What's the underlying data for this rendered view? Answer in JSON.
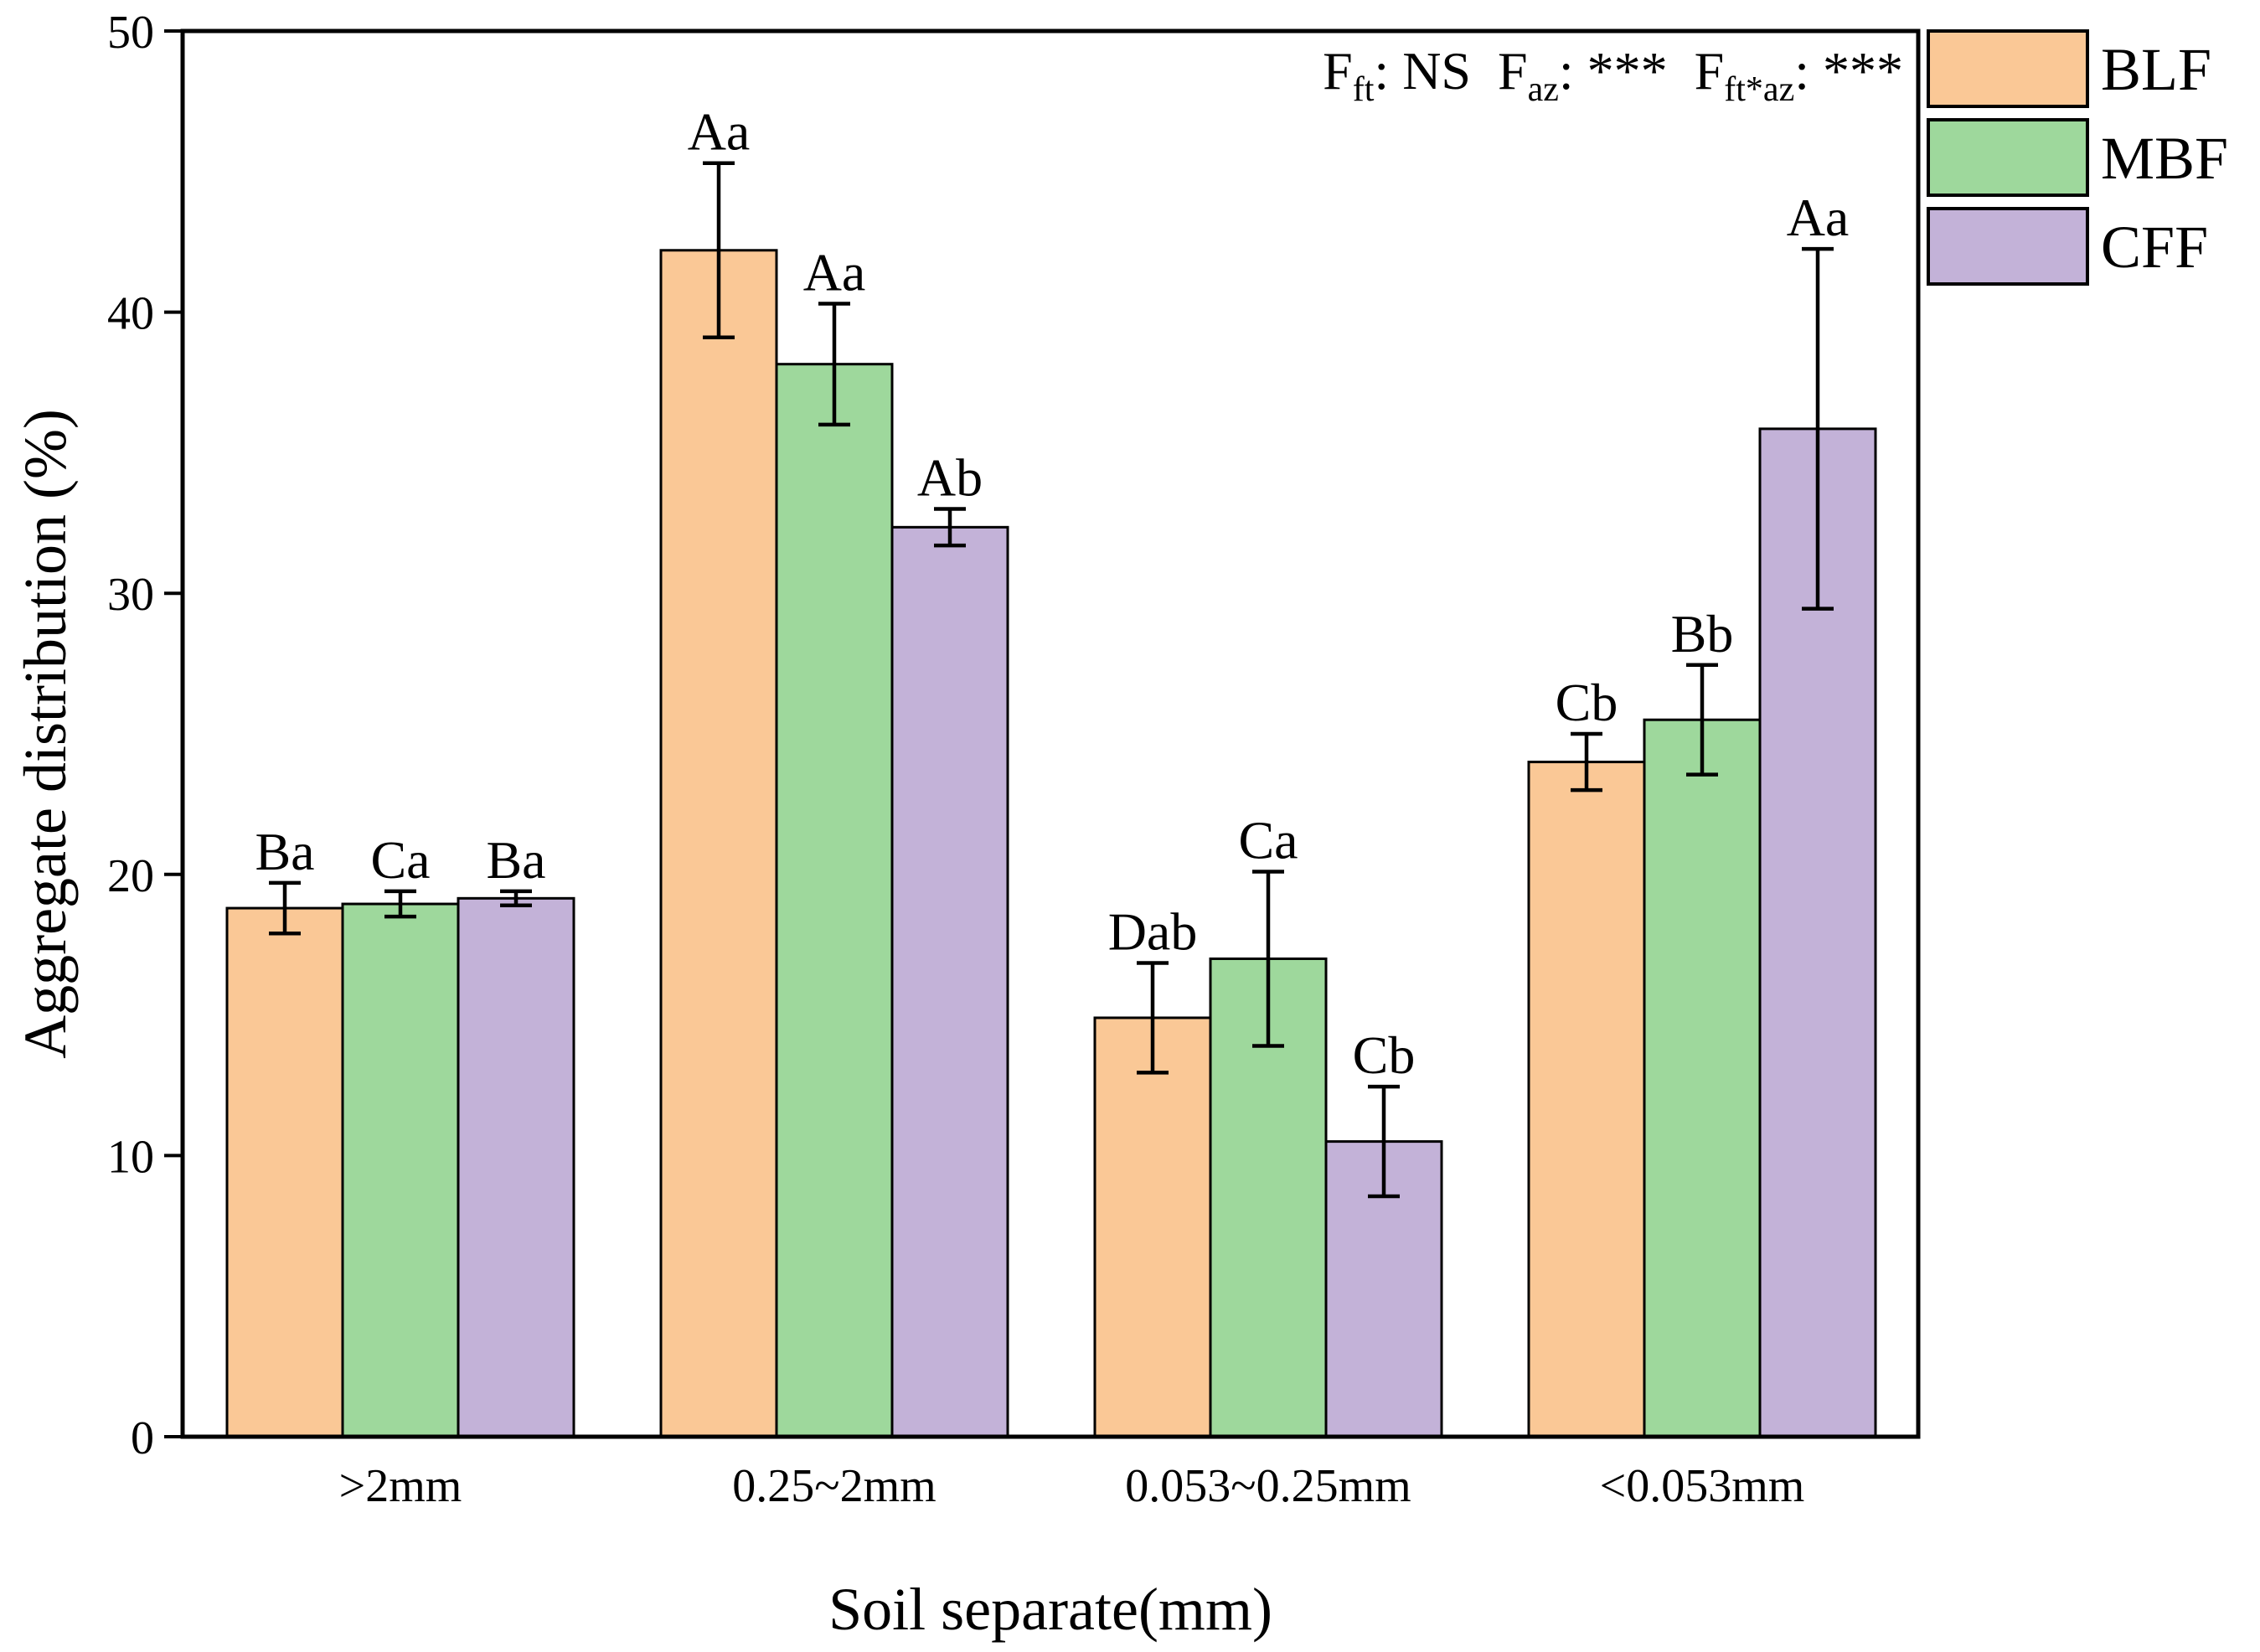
{
  "chart_data": {
    "type": "bar",
    "title": "",
    "xlabel": "Soil separate(mm)",
    "ylabel": "Aggregate distribution (%)",
    "ylim": [
      0,
      50
    ],
    "yticks": [
      0,
      10,
      20,
      30,
      40,
      50
    ],
    "ytick_labels": [
      "0",
      "10",
      "20",
      "30",
      "40",
      "50"
    ],
    "categories": [
      ">2mm",
      "0.25~2mm",
      "0.053~0.25mm",
      "<0.053mm"
    ],
    "series": [
      {
        "name": "BLF",
        "color": "#FAC896",
        "values": [
          18.8,
          42.2,
          14.9,
          24.0
        ],
        "errors": [
          0.9,
          3.1,
          1.95,
          1.0
        ],
        "letters": [
          "Ba",
          "Aa",
          "Dab",
          "Cb"
        ]
      },
      {
        "name": "MBF",
        "color": "#9ED89C",
        "values": [
          18.95,
          38.15,
          17.0,
          25.5
        ],
        "errors": [
          0.45,
          2.15,
          3.1,
          1.95
        ],
        "letters": [
          "Ca",
          "Aa",
          "Ca",
          "Bb"
        ]
      },
      {
        "name": "CFF",
        "color": "#C3B2D8",
        "values": [
          19.15,
          32.35,
          10.5,
          35.85
        ],
        "errors": [
          0.25,
          0.65,
          1.95,
          6.4
        ],
        "letters": [
          "Ba",
          "Ab",
          "Cb",
          "Aa"
        ]
      }
    ],
    "legend_position": "top-right, outside plot area",
    "annotations": [
      {
        "position": "top-right",
        "parts": [
          {
            "main": "F",
            "sub": "ft",
            "suffix": ": NS"
          },
          {
            "main": "F",
            "sub": "az",
            "suffix": ": ***"
          },
          {
            "main": "F",
            "sub": "ft*az",
            "suffix": ": ***"
          }
        ]
      }
    ],
    "grid": false
  }
}
